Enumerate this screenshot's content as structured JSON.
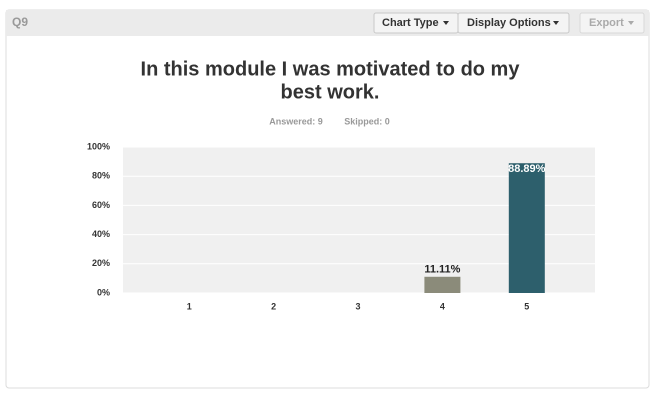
{
  "header": {
    "label": "Q9",
    "buttons": [
      "Chart Type",
      "Display Options",
      "Export"
    ]
  },
  "chart_data": {
    "type": "bar",
    "title": [
      "In this module I was motivated to do my",
      "best work."
    ],
    "stats": [
      "Answered: 9",
      "Skipped: 0"
    ],
    "categories": [
      "1",
      "2",
      "3",
      "4",
      "5"
    ],
    "values": [
      0,
      0,
      0,
      11.11,
      88.89
    ],
    "value_labels": [
      null,
      null,
      null,
      "11.11%",
      "88.89%"
    ],
    "colors": [
      "#8b8b7a",
      "#8b8b7a",
      "#8b8b7a",
      "#8b8b7a",
      "#2d5f6c"
    ],
    "ylim": [
      0,
      100
    ],
    "yticks": [
      {
        "value": 0,
        "label": "0%"
      },
      {
        "value": 20,
        "label": "20%"
      },
      {
        "value": 40,
        "label": "40%"
      },
      {
        "value": 60,
        "label": "60%"
      },
      {
        "value": 80,
        "label": "80%"
      },
      {
        "value": 100,
        "label": "100%"
      }
    ],
    "grid": true
  }
}
